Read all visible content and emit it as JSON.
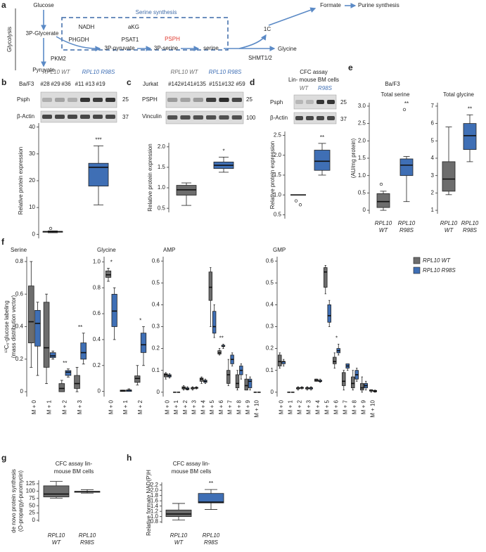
{
  "panel_labels": [
    "a",
    "b",
    "c",
    "d",
    "e",
    "f",
    "g",
    "h"
  ],
  "diagram": {
    "glucose": "Glucose",
    "glycolysis": "Glycolysis",
    "p3_glycerate": "3P-Glycerate",
    "nadh": "NADH",
    "phgdh": "PHGDH",
    "akg": "aKG",
    "psat1": "PSAT1",
    "serine_synthesis": "Serine synthesis",
    "psph": "PSPH",
    "p3_pyruvate": "3P-pyruvate",
    "p3_serine": "3P-serine",
    "serine": "serine",
    "formate": "Formate",
    "purine": "Purine synthesis",
    "one_c": "1C",
    "glycine": "Glycine",
    "shmt": "SHMT1/2",
    "pkm2": "PKM2",
    "pyruvate": "Pyruvate"
  },
  "blots": {
    "b": {
      "cell_line": "Ba/F3",
      "wt": "RPL10 WT",
      "mut": "RPL10 R98S",
      "wt_lanes": [
        "#28",
        "#29",
        "#36"
      ],
      "mut_lanes": [
        "#11",
        "#13",
        "#19"
      ],
      "bands": [
        "Psph",
        "β-Actin"
      ],
      "markers": [
        "25",
        "37"
      ]
    },
    "c": {
      "cell_line": "Jurkat",
      "wt": "RPL10 WT",
      "mut": "RPL10 R98S",
      "wt_lanes": [
        "#142",
        "#141",
        "#135"
      ],
      "mut_lanes": [
        "#151",
        "#132",
        "#59"
      ],
      "bands": [
        "PSPH",
        "Vinculin"
      ],
      "markers": [
        "25",
        "100"
      ]
    },
    "d": {
      "title": [
        "CFC assay",
        "Lin- mouse BM cells"
      ],
      "wt": "WT",
      "mut": "R98S",
      "bands": [
        "Psph",
        "β-Actin"
      ],
      "markers": [
        "25",
        "37"
      ]
    },
    "e": {
      "cell_line": "Ba/F3"
    }
  },
  "chart_data": [
    {
      "type": "box",
      "ylabel": [
        "Relative protein expression"
      ],
      "ylim": [
        -1.5,
        41.5
      ],
      "yticks": [
        0,
        10,
        20,
        30,
        40
      ],
      "boxes": [
        {
          "color": "#6d6d6d",
          "values": [
            0.6,
            0.8,
            1,
            1.1,
            1.3
          ],
          "outliers": [
            2.2
          ]
        },
        {
          "color": "#3f6fb5",
          "values": [
            11,
            18,
            25,
            26.5,
            33
          ]
        }
      ],
      "significance": [
        null,
        "***"
      ]
    },
    {
      "type": "box",
      "ylabel": [
        "Relative protein expression"
      ],
      "ylim": [
        0.4,
        2.1
      ],
      "yticks": [
        0.5,
        {
          "value": 1,
          "label": "1.0"
        },
        1.5,
        {
          "value": 2,
          "label": "2.0"
        }
      ],
      "boxes": [
        {
          "color": "#6d6d6d",
          "values": [
            0.57,
            0.82,
            0.95,
            1.06,
            1.12
          ]
        },
        {
          "color": "#3f6fb5",
          "values": [
            1.38,
            1.47,
            1.55,
            1.63,
            1.75
          ]
        }
      ],
      "significance": [
        null,
        "*"
      ]
    },
    {
      "type": "box",
      "ylabel": [
        "Relative protein expression"
      ],
      "ylim": [
        0.4,
        2.6
      ],
      "yticks": [
        0.5,
        {
          "value": 1,
          "label": "1.0"
        },
        1.5,
        {
          "value": 2,
          "label": "2.0"
        },
        2.5
      ],
      "boxes": [
        {
          "color": "#6d6d6d",
          "values": [
            1,
            1,
            1,
            1,
            1
          ],
          "outliers": [
            0.85,
            0.75
          ]
        },
        {
          "color": "#3f6fb5",
          "values": [
            1.5,
            1.62,
            1.85,
            2.13,
            2.3
          ]
        }
      ],
      "significance": [
        null,
        "**"
      ]
    },
    {
      "type": "box",
      "title": "Total serine",
      "ylabel": [
        "(AU/mg protein)"
      ],
      "ylim": [
        -0.1,
        3.1
      ],
      "yticks": [
        0,
        0.5,
        {
          "value": 1,
          "label": "1.0"
        },
        1.5,
        {
          "value": 2,
          "label": "2.0"
        },
        2.5,
        {
          "value": 3,
          "label": "3.0"
        }
      ],
      "categories": [
        [
          "RPL10",
          "WT"
        ],
        [
          "RPL10",
          "R98S"
        ]
      ],
      "boxes": [
        {
          "color": "#6d6d6d",
          "values": [
            0,
            0.08,
            0.25,
            0.48,
            0.55
          ],
          "outliers": [
            0.75
          ]
        },
        {
          "color": "#3f6fb5",
          "values": [
            0.25,
            1.0,
            1.3,
            1.48,
            1.55
          ],
          "outliers": [
            2.9
          ]
        }
      ],
      "significance": [
        null,
        "**"
      ]
    },
    {
      "type": "box",
      "title": "Total glycine",
      "ylim": [
        0.8,
        7.2
      ],
      "yticks": [
        1,
        2,
        3,
        4,
        5,
        6,
        7
      ],
      "categories": [
        [
          "RPL10",
          "WT"
        ],
        [
          "RPL10",
          "R98S"
        ]
      ],
      "boxes": [
        {
          "color": "#6d6d6d",
          "values": [
            1.9,
            2.1,
            2.8,
            3.8,
            5.8
          ]
        },
        {
          "color": "#3f6fb5",
          "values": [
            3.8,
            4.5,
            5.3,
            6.0,
            6.5
          ]
        }
      ],
      "significance": [
        null,
        "**"
      ]
    },
    {
      "type": "grouped_box",
      "title": "Serine",
      "ylabel": [
        "¹³C₆-glucose labeling",
        "(mass distribution vector)"
      ],
      "ylim": [
        -0.03,
        0.83
      ],
      "yticks": [
        0,
        0.2,
        0.4,
        0.6,
        0.8
      ],
      "categories": [
        "M + 0",
        "M + 1",
        "M + 2",
        "M + 3"
      ],
      "series": [
        {
          "name": "RPL10 WT",
          "color": "#6d6d6d",
          "values": [
            [
              0.15,
              0.3,
              0.43,
              0.65,
              0.8
            ],
            [
              0.05,
              0.15,
              0.27,
              0.55,
              0.6
            ],
            [
              0,
              0,
              0.02,
              0.05,
              0.07
            ],
            [
              0,
              0.02,
              0.05,
              0.1,
              0.15
            ]
          ]
        },
        {
          "name": "RPL10 R98S",
          "color": "#3f6fb5",
          "values": [
            [
              0.1,
              0.28,
              0.42,
              0.5,
              0.55
            ],
            [
              0.2,
              0.21,
              0.22,
              0.24,
              0.25
            ],
            [
              0.09,
              0.1,
              0.12,
              0.13,
              0.14
            ],
            [
              0.17,
              0.2,
              0.24,
              0.3,
              0.36
            ]
          ]
        }
      ],
      "significance": [
        null,
        null,
        "**",
        "**"
      ]
    },
    {
      "type": "grouped_box",
      "title": "Glycine",
      "ylim": [
        -0.04,
        1.04
      ],
      "yticks": [
        0,
        0.2,
        0.4,
        0.6,
        0.8,
        {
          "value": 1,
          "label": "1.0"
        }
      ],
      "categories": [
        "M + 0",
        "M + 1",
        "M + 2"
      ],
      "series": [
        {
          "color": "#6d6d6d",
          "values": [
            [
              0.85,
              0.88,
              0.9,
              0.93,
              0.95
            ],
            [
              0,
              0,
              0.005,
              0.01,
              0.01
            ],
            [
              0.05,
              0.07,
              0.1,
              0.12,
              0.2
            ]
          ]
        },
        {
          "color": "#3f6fb5",
          "values": [
            [
              0.4,
              0.5,
              0.62,
              0.75,
              0.8
            ],
            [
              0,
              0,
              0.01,
              0.01,
              0.02
            ],
            [
              0.2,
              0.3,
              0.36,
              0.45,
              0.5
            ]
          ]
        }
      ],
      "significance": [
        "*",
        null,
        "*"
      ]
    },
    {
      "type": "grouped_box",
      "title": "AMP",
      "ylim": [
        -0.02,
        0.62
      ],
      "yticks": [
        0,
        0.1,
        0.2,
        0.3,
        0.4,
        0.5,
        0.6
      ],
      "categories": [
        "M + 0",
        "M + 1",
        "M + 2",
        "M + 3",
        "M + 4",
        "M + 5",
        "M + 6",
        "M + 7",
        "M + 8",
        "M + 9",
        "M + 10"
      ],
      "series": [
        {
          "color": "#6d6d6d",
          "values": [
            [
              0.06,
              0.07,
              0.08,
              0.085,
              0.09
            ],
            [
              0,
              0,
              0,
              0,
              0
            ],
            [
              0.01,
              0.015,
              0.02,
              0.025,
              0.03
            ],
            [
              0.01,
              0.015,
              0.02,
              0.02,
              0.025
            ],
            [
              0.04,
              0.05,
              0.06,
              0.065,
              0.07
            ],
            [
              0.3,
              0.42,
              0.48,
              0.55,
              0.57
            ],
            [
              0.17,
              0.175,
              0.18,
              0.19,
              0.2
            ],
            [
              0.03,
              0.04,
              0.08,
              0.1,
              0.15
            ],
            [
              0.01,
              0.02,
              0.04,
              0.08,
              0.1
            ],
            [
              0.01,
              0.01,
              0.03,
              0.06,
              0.08
            ],
            [
              0,
              0,
              0,
              0,
              0
            ]
          ]
        },
        {
          "color": "#3f6fb5",
          "values": [
            [
              0.065,
              0.07,
              0.075,
              0.08,
              0.085
            ],
            [
              0,
              0,
              0,
              0,
              0
            ],
            [
              0.01,
              0.012,
              0.015,
              0.02,
              0.025
            ],
            [
              0.015,
              0.018,
              0.02,
              0.022,
              0.025
            ],
            [
              0.04,
              0.045,
              0.05,
              0.055,
              0.06
            ],
            [
              0.25,
              0.27,
              0.3,
              0.37,
              0.4
            ],
            [
              0.2,
              0.21,
              0.21,
              0.215,
              0.22
            ],
            [
              0.12,
              0.13,
              0.15,
              0.17,
              0.18
            ],
            [
              0.06,
              0.08,
              0.1,
              0.12,
              0.13
            ],
            [
              0.01,
              0.02,
              0.05,
              0.06,
              0.07
            ],
            [
              0,
              0,
              0,
              0,
              0
            ]
          ]
        }
      ],
      "significance": [
        null,
        null,
        null,
        null,
        null,
        null,
        "**",
        null,
        null,
        null,
        null
      ]
    },
    {
      "type": "grouped_box",
      "title": "GMP",
      "ylim": [
        -0.02,
        0.62
      ],
      "yticks": [
        0,
        0.1,
        0.2,
        0.3,
        0.4,
        0.5,
        0.6
      ],
      "categories": [
        "M + 0",
        "M + 1",
        "M + 2",
        "M + 3",
        "M + 4",
        "M + 5",
        "M + 6",
        "M + 7",
        "M + 8",
        "M + 9",
        "M + 10"
      ],
      "series": [
        {
          "color": "#6d6d6d",
          "values": [
            [
              0.11,
              0.12,
              0.14,
              0.17,
              0.18
            ],
            [
              0,
              0,
              0,
              0,
              0
            ],
            [
              0.01,
              0.015,
              0.02,
              0.02,
              0.025
            ],
            [
              0.01,
              0.015,
              0.02,
              0.02,
              0.025
            ],
            [
              0.05,
              0.05,
              0.055,
              0.06,
              0.06
            ],
            [
              0.45,
              0.48,
              0.55,
              0.57,
              0.58
            ],
            [
              0.11,
              0.13,
              0.14,
              0.16,
              0.18
            ],
            [
              0.01,
              0.03,
              0.05,
              0.09,
              0.1
            ],
            [
              0.01,
              0.02,
              0.04,
              0.07,
              0.1
            ],
            [
              0,
              0.01,
              0.02,
              0.04,
              0.07
            ],
            [
              0,
              0.005,
              0.01,
              0.01,
              0.01
            ]
          ]
        },
        {
          "color": "#3f6fb5",
          "values": [
            [
              0.12,
              0.13,
              0.14,
              0.14,
              0.15
            ],
            [
              0,
              0,
              0,
              0,
              0
            ],
            [
              0.015,
              0.018,
              0.02,
              0.022,
              0.025
            ],
            [
              0.01,
              0.015,
              0.02,
              0.02,
              0.025
            ],
            [
              0.045,
              0.05,
              0.05,
              0.055,
              0.06
            ],
            [
              0.3,
              0.32,
              0.35,
              0.4,
              0.42
            ],
            [
              0.17,
              0.18,
              0.19,
              0.2,
              0.22
            ],
            [
              0.1,
              0.11,
              0.12,
              0.13,
              0.13
            ],
            [
              0.05,
              0.06,
              0.08,
              0.1,
              0.11
            ],
            [
              0.01,
              0.02,
              0.03,
              0.04,
              0.05
            ],
            [
              0,
              0.002,
              0.005,
              0.008,
              0.01
            ]
          ]
        }
      ],
      "significance": [
        null,
        null,
        null,
        null,
        null,
        null,
        "*",
        null,
        null,
        null,
        null
      ]
    },
    {
      "type": "box",
      "title": [
        "CFC assay lin-",
        "mouse BM cells"
      ],
      "ylabel": [
        "de novo protein synthesis",
        "(O-propargyl-puromycin)"
      ],
      "ylim": [
        -5,
        137
      ],
      "yticks": [
        0,
        25,
        50,
        75,
        100,
        125
      ],
      "categories": [
        [
          "RPL10",
          "WT"
        ],
        [
          "RPL10",
          "R98S"
        ]
      ],
      "boxes": [
        {
          "color": "#6d6d6d",
          "values": [
            76,
            80,
            90,
            118,
            133
          ]
        },
        {
          "color": "#3f6fb5",
          "values": [
            93,
            96,
            98,
            99,
            105
          ]
        }
      ],
      "significance": [
        null,
        null
      ]
    },
    {
      "type": "box",
      "title": [
        "CFC assay lin-",
        "mouse BM cells"
      ],
      "ylabel": [
        "Relative formate NAD(P)H"
      ],
      "ylim": [
        0.75,
        2.3
      ],
      "yticks": [
        0.8,
        {
          "value": 1,
          "label": "1.0"
        },
        1.2,
        1.4,
        1.6,
        1.8,
        {
          "value": 2,
          "label": "2.0"
        },
        2.2
      ],
      "categories": [
        [
          "RPL10",
          "WT"
        ],
        [
          "RPL10",
          "R98S"
        ]
      ],
      "boxes": [
        {
          "color": "#6d6d6d",
          "values": [
            0.87,
            1.0,
            1.1,
            1.25,
            1.5
          ]
        },
        {
          "color": "#3f6fb5",
          "values": [
            1.27,
            1.52,
            1.55,
            1.88,
            2.03
          ]
        }
      ],
      "significance": [
        null,
        "**"
      ]
    }
  ]
}
